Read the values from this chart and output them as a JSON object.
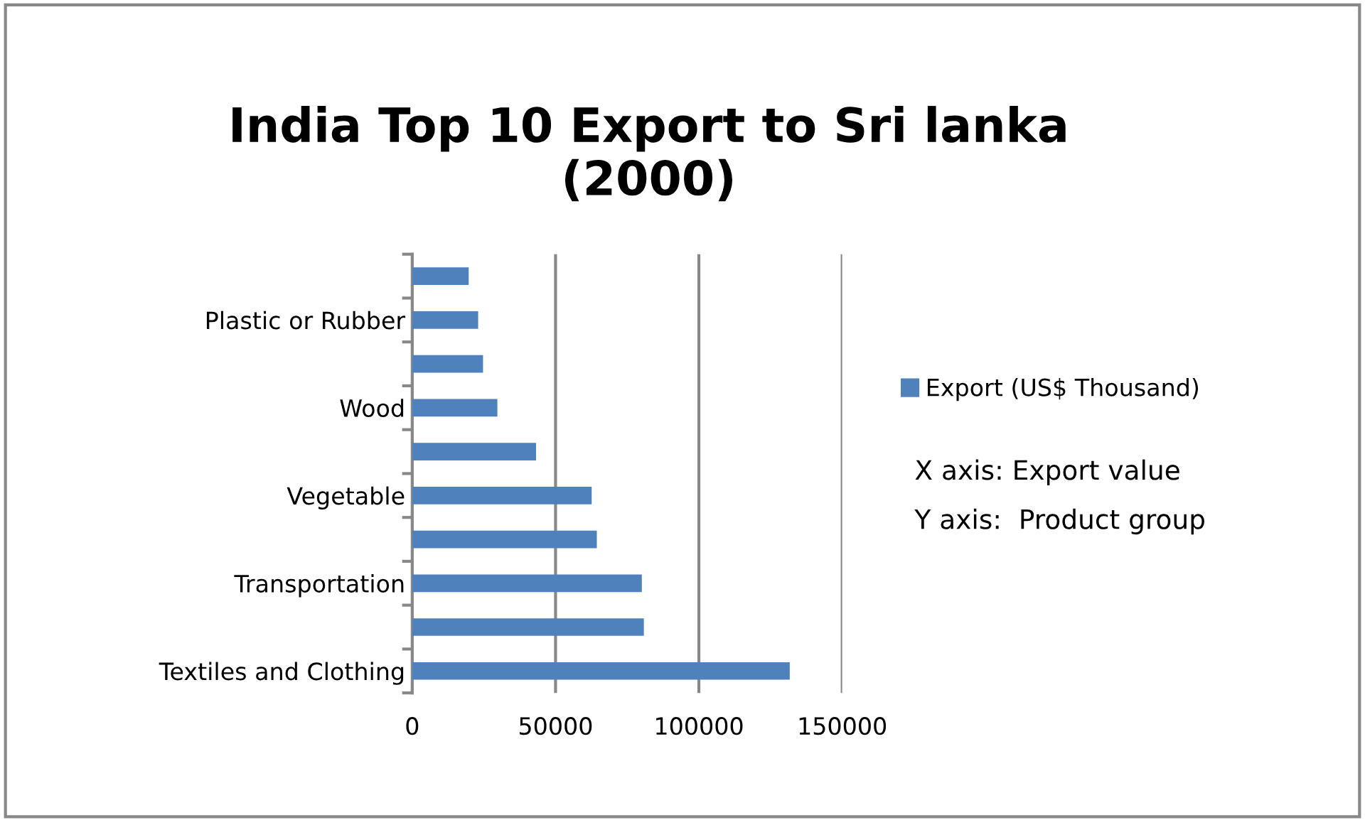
{
  "chart_data": {
    "type": "bar",
    "orientation": "horizontal",
    "title": "India Top 10 Export to Sri lanka\n(2000)",
    "categories": [
      null,
      "Plastic or Rubber",
      null,
      "Wood",
      null,
      "Vegetable",
      null,
      "Transportation",
      null,
      "Textiles and Clothing"
    ],
    "series": [
      {
        "name": "Export (US$ Thousand)",
        "color": "#4f81bd",
        "values": [
          19700,
          23000,
          24700,
          29700,
          43200,
          62600,
          64400,
          80100,
          80800,
          131700
        ]
      }
    ],
    "xlim": [
      0,
      150000
    ],
    "xticks": [
      0,
      50000,
      100000,
      150000
    ],
    "grid": "x",
    "legend": "right",
    "annotations": [
      "X axis: Export value",
      "Y axis:  Product group"
    ]
  }
}
